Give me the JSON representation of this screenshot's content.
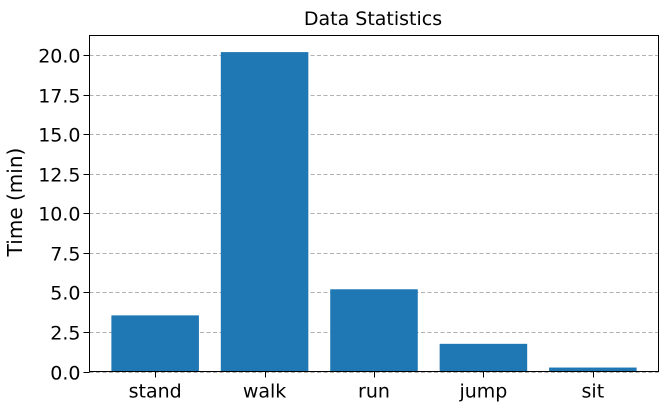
{
  "chart_data": {
    "type": "bar",
    "title": "Data Statistics",
    "xlabel": "",
    "ylabel": "Time (min)",
    "categories": [
      "stand",
      "walk",
      "run",
      "jump",
      "sit"
    ],
    "values": [
      3.55,
      20.2,
      5.2,
      1.75,
      0.25
    ],
    "ylim": [
      0,
      21.25
    ],
    "yticks": [
      "0.0",
      "2.5",
      "5.0",
      "7.5",
      "10.0",
      "12.5",
      "15.0",
      "17.5",
      "20.0"
    ],
    "grid": true,
    "bar_color": "#1f77b4",
    "grid_color": "#b0b0b0"
  }
}
